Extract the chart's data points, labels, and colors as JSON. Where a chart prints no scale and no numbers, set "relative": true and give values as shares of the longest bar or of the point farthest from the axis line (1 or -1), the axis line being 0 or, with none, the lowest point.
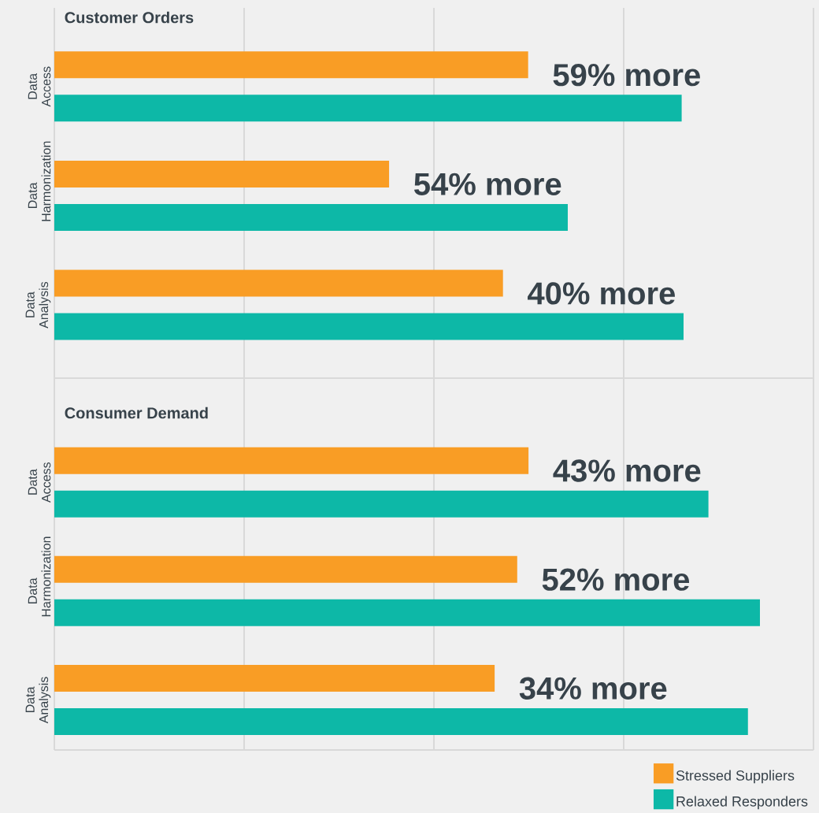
{
  "chart_data": [
    {
      "type": "bar",
      "orientation": "horizontal",
      "relative": true,
      "grid": "x",
      "title": "Customer Orders",
      "categories": [
        "Data Access",
        "Data Harmonization",
        "Data Analysis"
      ],
      "series": [
        {
          "color": "#f99d25",
          "values": [
            0.753,
            0.532,
            0.713
          ]
        },
        {
          "color": "#0db8a7",
          "values": [
            0.997,
            0.816,
            1.0
          ]
        }
      ],
      "annotations": [
        "59% more",
        "54% more",
        "40% more"
      ]
    },
    {
      "type": "bar",
      "orientation": "horizontal",
      "relative": true,
      "grid": "x",
      "title": "Consumer Demand",
      "legend": "bottom right",
      "categories": [
        "Data Access",
        "Data Harmonization",
        "Data Analysis"
      ],
      "series": [
        {
          "name": "Stressed Suppliers",
          "color": "#f99d25",
          "values": [
            0.672,
            0.656,
            0.624
          ]
        },
        {
          "name": "Relaxed Responders",
          "color": "#0db8a7",
          "values": [
            0.927,
            1.0,
            0.983
          ]
        }
      ],
      "annotations": [
        "43% more",
        "52% more",
        "34% more"
      ]
    }
  ]
}
